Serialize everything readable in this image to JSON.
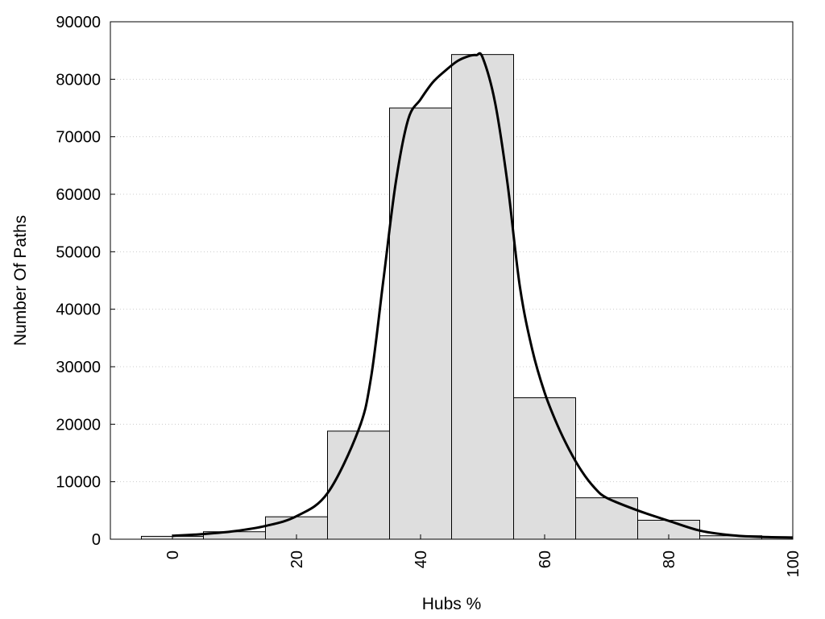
{
  "chart_data": {
    "type": "bar",
    "subtype": "histogram-with-density-curve",
    "title": "",
    "xlabel": "Hubs %",
    "ylabel": "Number Of Paths",
    "xlim": [
      -10,
      100
    ],
    "ylim": [
      0,
      90000
    ],
    "grid": "horizontal-dotted",
    "x_ticks": [
      "0",
      "20",
      "40",
      "60",
      "80",
      "100"
    ],
    "y_ticks": [
      "0",
      "10000",
      "20000",
      "30000",
      "40000",
      "50000",
      "60000",
      "70000",
      "80000",
      "90000"
    ],
    "bins": [
      {
        "x0": -5,
        "x1": 5,
        "value": 500
      },
      {
        "x0": 5,
        "x1": 15,
        "value": 1300
      },
      {
        "x0": 15,
        "x1": 25,
        "value": 3900
      },
      {
        "x0": 25,
        "x1": 35,
        "value": 18800
      },
      {
        "x0": 35,
        "x1": 45,
        "value": 75000
      },
      {
        "x0": 45,
        "x1": 55,
        "value": 84300
      },
      {
        "x0": 55,
        "x1": 65,
        "value": 24600
      },
      {
        "x0": 65,
        "x1": 75,
        "value": 7200
      },
      {
        "x0": 75,
        "x1": 85,
        "value": 3300
      },
      {
        "x0": 85,
        "x1": 95,
        "value": 600
      },
      {
        "x0": 95,
        "x1": 100,
        "value": 300
      }
    ],
    "curve": [
      [
        0,
        600
      ],
      [
        5,
        900
      ],
      [
        10,
        1400
      ],
      [
        15,
        2300
      ],
      [
        20,
        4000
      ],
      [
        25,
        8000
      ],
      [
        30,
        19000
      ],
      [
        32,
        28000
      ],
      [
        34,
        45000
      ],
      [
        36,
        62000
      ],
      [
        38,
        73000
      ],
      [
        40,
        76500
      ],
      [
        42,
        79500
      ],
      [
        44,
        81500
      ],
      [
        46,
        83200
      ],
      [
        48,
        84100
      ],
      [
        49,
        84200
      ],
      [
        50,
        83800
      ],
      [
        52,
        76000
      ],
      [
        54,
        62000
      ],
      [
        56,
        44000
      ],
      [
        58,
        33000
      ],
      [
        60,
        25500
      ],
      [
        62,
        20000
      ],
      [
        64,
        15500
      ],
      [
        66,
        11800
      ],
      [
        68,
        9000
      ],
      [
        70,
        7200
      ],
      [
        75,
        5000
      ],
      [
        80,
        3200
      ],
      [
        85,
        1500
      ],
      [
        90,
        700
      ],
      [
        95,
        400
      ],
      [
        100,
        300
      ]
    ],
    "colors": {
      "bar_fill": "#dedede",
      "bar_stroke": "#000000",
      "curve": "#000000",
      "grid": "#cccccc"
    }
  }
}
